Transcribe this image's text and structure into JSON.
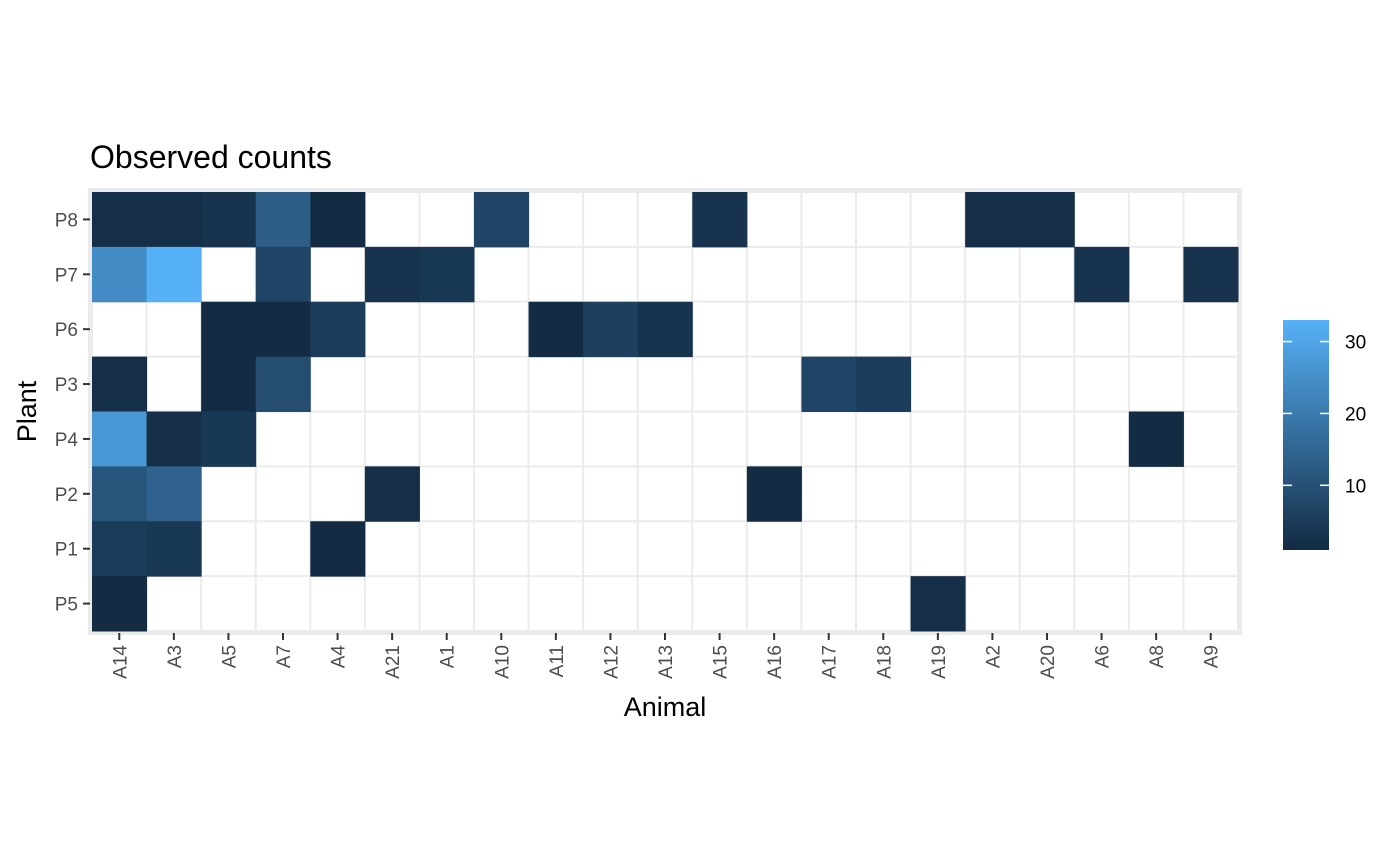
{
  "chart_data": {
    "type": "heatmap",
    "title": "Observed counts",
    "xlabel": "Animal",
    "ylabel": "Plant",
    "x_categories": [
      "A14",
      "A3",
      "A5",
      "A7",
      "A4",
      "A21",
      "A1",
      "A10",
      "A11",
      "A12",
      "A13",
      "A15",
      "A16",
      "A17",
      "A18",
      "A19",
      "A2",
      "A20",
      "A6",
      "A8",
      "A9"
    ],
    "y_categories": [
      "P8",
      "P7",
      "P6",
      "P3",
      "P4",
      "P2",
      "P1",
      "P5"
    ],
    "cells": [
      {
        "x": "A14",
        "y": "P8",
        "value": 2
      },
      {
        "x": "A3",
        "y": "P8",
        "value": 2
      },
      {
        "x": "A5",
        "y": "P8",
        "value": 3
      },
      {
        "x": "A7",
        "y": "P8",
        "value": 13
      },
      {
        "x": "A4",
        "y": "P8",
        "value": 1
      },
      {
        "x": "A10",
        "y": "P8",
        "value": 7
      },
      {
        "x": "A15",
        "y": "P8",
        "value": 3
      },
      {
        "x": "A2",
        "y": "P8",
        "value": 2
      },
      {
        "x": "A20",
        "y": "P8",
        "value": 2
      },
      {
        "x": "A14",
        "y": "P7",
        "value": 24
      },
      {
        "x": "A3",
        "y": "P7",
        "value": 33
      },
      {
        "x": "A7",
        "y": "P7",
        "value": 7
      },
      {
        "x": "A21",
        "y": "P7",
        "value": 3
      },
      {
        "x": "A1",
        "y": "P7",
        "value": 4
      },
      {
        "x": "A6",
        "y": "P7",
        "value": 3
      },
      {
        "x": "A9",
        "y": "P7",
        "value": 3
      },
      {
        "x": "A5",
        "y": "P6",
        "value": 1
      },
      {
        "x": "A7",
        "y": "P6",
        "value": 1
      },
      {
        "x": "A4",
        "y": "P6",
        "value": 5
      },
      {
        "x": "A11",
        "y": "P6",
        "value": 1
      },
      {
        "x": "A12",
        "y": "P6",
        "value": 6
      },
      {
        "x": "A13",
        "y": "P6",
        "value": 3
      },
      {
        "x": "A14",
        "y": "P3",
        "value": 2
      },
      {
        "x": "A5",
        "y": "P3",
        "value": 1
      },
      {
        "x": "A7",
        "y": "P3",
        "value": 9
      },
      {
        "x": "A17",
        "y": "P3",
        "value": 7
      },
      {
        "x": "A18",
        "y": "P3",
        "value": 5
      },
      {
        "x": "A14",
        "y": "P4",
        "value": 27
      },
      {
        "x": "A3",
        "y": "P4",
        "value": 2
      },
      {
        "x": "A5",
        "y": "P4",
        "value": 4
      },
      {
        "x": "A8",
        "y": "P4",
        "value": 1
      },
      {
        "x": "A14",
        "y": "P2",
        "value": 11
      },
      {
        "x": "A3",
        "y": "P2",
        "value": 14
      },
      {
        "x": "A21",
        "y": "P2",
        "value": 2
      },
      {
        "x": "A16",
        "y": "P2",
        "value": 1
      },
      {
        "x": "A14",
        "y": "P1",
        "value": 5
      },
      {
        "x": "A3",
        "y": "P1",
        "value": 4
      },
      {
        "x": "A4",
        "y": "P1",
        "value": 1
      },
      {
        "x": "A14",
        "y": "P5",
        "value": 1
      },
      {
        "x": "A19",
        "y": "P5",
        "value": 2
      }
    ],
    "color_scale": {
      "low_color": "#132B43",
      "high_color": "#56B1F7",
      "min": 1,
      "max": 33,
      "breaks": [
        10,
        20,
        30
      ],
      "legend_position": "right",
      "legend_title": ""
    },
    "grid": true,
    "panel_background": "#ffffff",
    "grid_color": "#ebebeb"
  }
}
